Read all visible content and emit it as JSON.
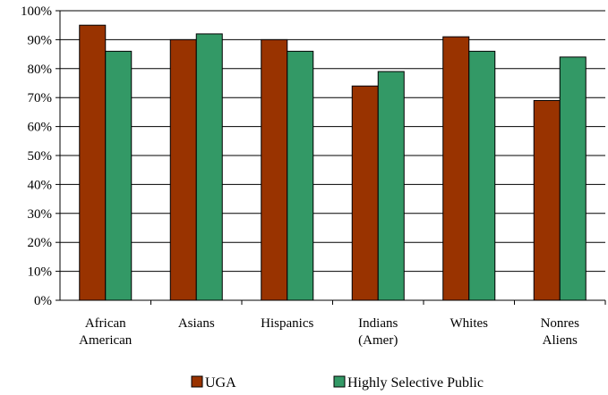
{
  "chart_data": {
    "type": "bar",
    "title": "",
    "xlabel": "",
    "ylabel": "",
    "categories": [
      [
        "African",
        "American"
      ],
      [
        "Asians"
      ],
      [
        "Hispanics"
      ],
      [
        "Indians",
        "(Amer)"
      ],
      [
        "Whites"
      ],
      [
        "Nonres",
        "Aliens"
      ]
    ],
    "series": [
      {
        "name": "UGA",
        "color": "#993300",
        "values": [
          95,
          90,
          90,
          74,
          91,
          69
        ]
      },
      {
        "name": "Highly Selective Public",
        "color": "#339966",
        "values": [
          86,
          92,
          86,
          79,
          86,
          84
        ]
      }
    ],
    "ylim": [
      0,
      100
    ],
    "yticks": [
      "0%",
      "10%",
      "20%",
      "30%",
      "40%",
      "50%",
      "60%",
      "70%",
      "80%",
      "90%",
      "100%"
    ],
    "grid": true,
    "legend_position": "bottom"
  }
}
